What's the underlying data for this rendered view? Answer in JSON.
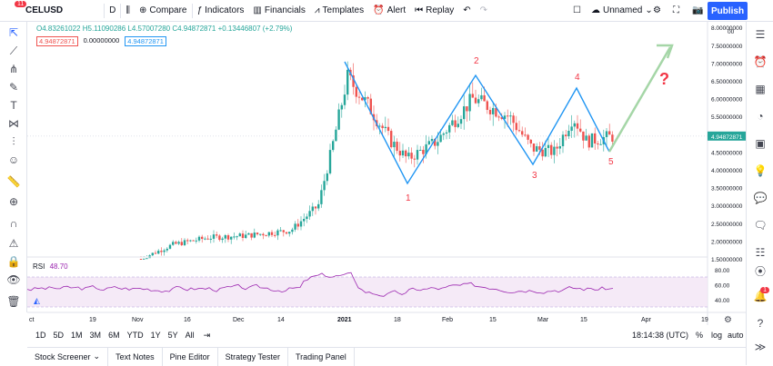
{
  "header": {
    "badge": "11",
    "symbol": "CELUSD",
    "interval": "D",
    "compare": "Compare",
    "indicators": "Indicators",
    "financials": "Financials",
    "templates": "Templates",
    "alert": "Alert",
    "replay": "Replay",
    "layout_name": "Unnamed",
    "publish": "Publish"
  },
  "legend": {
    "ohlc": "O4.83261022 H5.11090286 L4.57007280 C4.94872871 +0.13446807 (+2.79%)",
    "bid": "4.94872871",
    "spread": "0.00000000",
    "ask": "4.94872871"
  },
  "rsi": {
    "label": "RSI",
    "value": "48.70",
    "levels": [
      "80.00",
      "60.00",
      "40.00"
    ]
  },
  "price_axis": {
    "ticks": [
      "8.00000000",
      "7.50000000",
      "7.00000000",
      "6.50000000",
      "6.00000000",
      "5.50000000",
      "5.00000000",
      "4.50000000",
      "4.00000000",
      "3.50000000",
      "3.00000000",
      "2.50000000",
      "2.00000000",
      "1.50000000"
    ],
    "last_price": "4.94872871",
    "top_partial": "00"
  },
  "time_axis": [
    "ct",
    "19",
    "Nov",
    "16",
    "Dec",
    "14",
    "2021",
    "18",
    "Feb",
    "15",
    "Mar",
    "15",
    "Apr",
    "19"
  ],
  "annotations": {
    "labels": [
      "1",
      "2",
      "3",
      "4",
      "5"
    ],
    "question": "?"
  },
  "range_buttons": [
    "1D",
    "5D",
    "1M",
    "3M",
    "6M",
    "YTD",
    "1Y",
    "5Y",
    "All"
  ],
  "clock": "18:14:38 (UTC)",
  "scale_opts": [
    "%",
    "log",
    "auto"
  ],
  "bottom_tabs": [
    "Stock Screener",
    "Text Notes",
    "Pine Editor",
    "Strategy Tester",
    "Trading Panel"
  ],
  "right_badge": "1",
  "colors": {
    "up": "#26a69a",
    "down": "#ef5350",
    "pattern": "#2196f3",
    "arrow": "#a5d6a7",
    "annot": "#f23645",
    "rsi": "#9c27b0"
  }
}
